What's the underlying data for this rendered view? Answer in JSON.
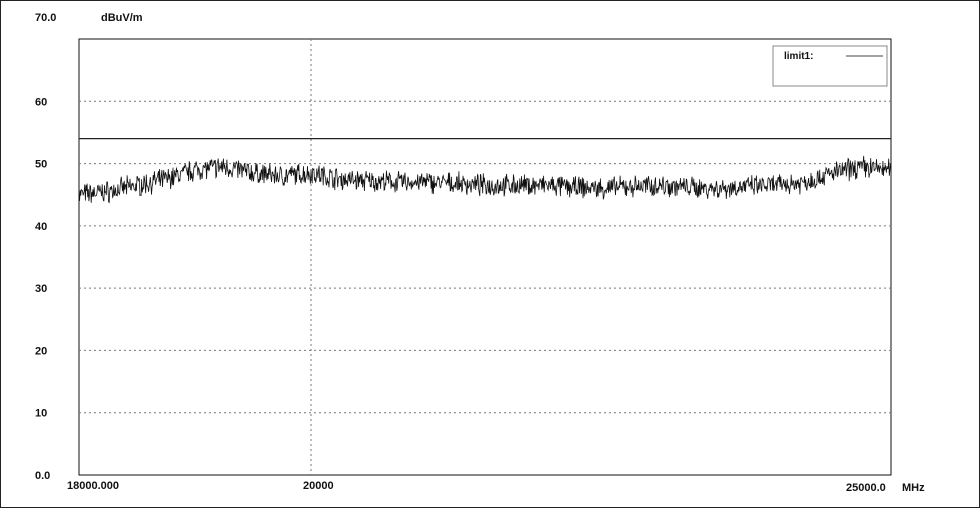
{
  "chart_data": {
    "type": "line",
    "y_top_label": "70.0",
    "y_unit_label": "dBuV/m",
    "x_start_label": "18000.000",
    "x_end_label": "25000.0",
    "x_unit_label": "MHz",
    "ylim": [
      0,
      70
    ],
    "xlim": [
      18000,
      25000
    ],
    "yticks": [
      {
        "value": 60,
        "label": "60"
      },
      {
        "value": 50,
        "label": "50"
      },
      {
        "value": 40,
        "label": "40"
      },
      {
        "value": 30,
        "label": "30"
      },
      {
        "value": 20,
        "label": "20"
      },
      {
        "value": 10,
        "label": "10"
      },
      {
        "value": 0,
        "label": "0.0"
      }
    ],
    "xticks": [
      {
        "value": 20000,
        "label": "20000"
      }
    ],
    "grid": true,
    "legend": {
      "position": "top-right",
      "entries": [
        "limit1:"
      ]
    },
    "limit_line": {
      "name": "limit1:",
      "value": 54
    },
    "series": [
      {
        "x": [
          18000,
          18250,
          18500,
          18750,
          19000,
          19250,
          19500,
          19750,
          20000,
          20250,
          20500,
          20750,
          21000,
          21250,
          21500,
          21750,
          22000,
          22250,
          22500,
          22750,
          23000,
          23250,
          23500,
          23750,
          24000,
          24250,
          24500,
          24750,
          25000
        ],
        "y": [
          45,
          45.5,
          46.5,
          47.5,
          49,
          49.5,
          48.5,
          48,
          48.5,
          47.5,
          47.2,
          47,
          47,
          46.8,
          46.5,
          46.5,
          46.5,
          46.2,
          46,
          46.3,
          46.5,
          46.2,
          46,
          46.3,
          46.5,
          47,
          48.5,
          49.5,
          49
        ]
      }
    ]
  }
}
